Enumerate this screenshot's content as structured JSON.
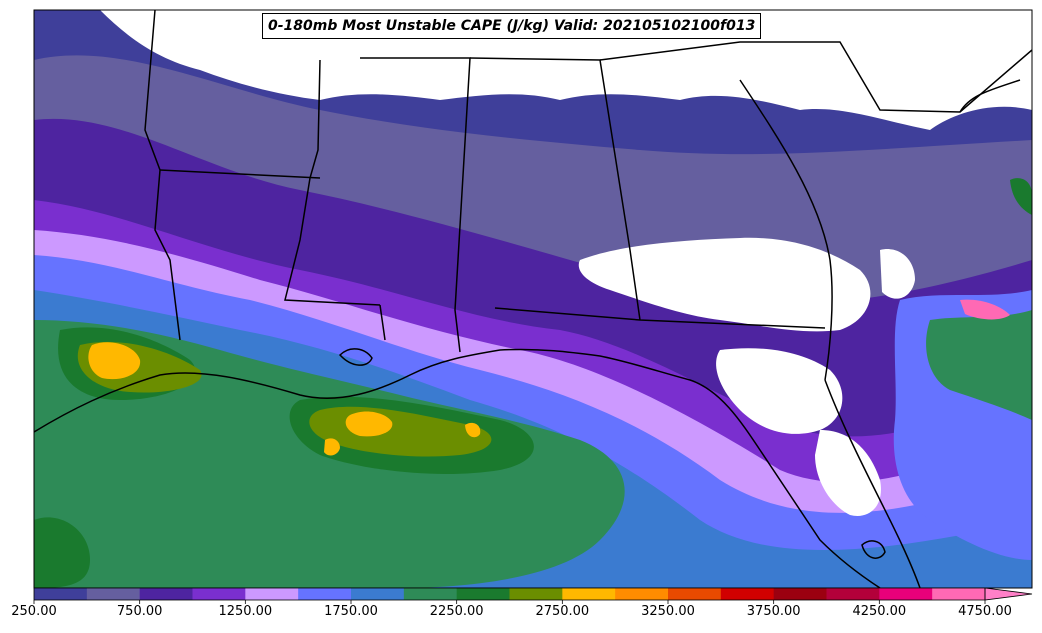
{
  "title": "0-180mb Most Unstable CAPE (J/kg) Valid: 202105102100f013",
  "colorbar": {
    "colors": [
      "#3f3f9a",
      "#655f9f",
      "#4e24a0",
      "#7a2fcf",
      "#cc99ff",
      "#6673ff",
      "#3b7bd0",
      "#2e8b57",
      "#1a7a2e",
      "#6b8e00",
      "#ffb800",
      "#ff8c00",
      "#e84a00",
      "#d10000",
      "#9b0010",
      "#b3003a",
      "#e8007a",
      "#ff69b4"
    ],
    "extend_color": "#ff80c8",
    "tick_labels": [
      "250.00",
      "750.00",
      "1250.00",
      "1750.00",
      "2250.00",
      "2750.00",
      "3250.00",
      "3750.00",
      "4250.00",
      "4750.00"
    ]
  }
}
